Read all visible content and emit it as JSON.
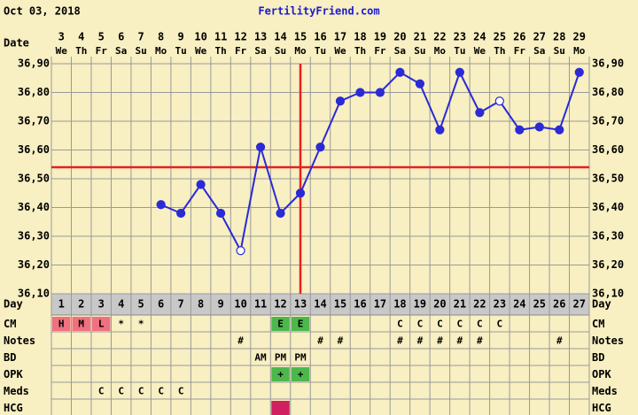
{
  "chart_data": {
    "type": "line",
    "header_date": "Oct 03, 2018",
    "site": "FertilityFriend.com",
    "date_label": "Date",
    "categories": [
      "3",
      "4",
      "5",
      "6",
      "7",
      "8",
      "9",
      "10",
      "11",
      "12",
      "13",
      "14",
      "15",
      "16",
      "17",
      "18",
      "19",
      "20",
      "21",
      "22",
      "23",
      "24",
      "25",
      "26",
      "27",
      "28",
      "29"
    ],
    "weekdays": [
      "We",
      "Th",
      "Fr",
      "Sa",
      "Su",
      "Mo",
      "Tu",
      "We",
      "Th",
      "Fr",
      "Sa",
      "Su",
      "Mo",
      "Tu",
      "We",
      "Th",
      "Fr",
      "Sa",
      "Su",
      "Mo",
      "Tu",
      "We",
      "Th",
      "Fr",
      "Sa",
      "Su",
      "Mo"
    ],
    "ylim": [
      36.1,
      36.9
    ],
    "yticks": [
      {
        "value": 36.1,
        "label": "36,10"
      },
      {
        "value": 36.2,
        "label": "36,20"
      },
      {
        "value": 36.3,
        "label": "36,30"
      },
      {
        "value": 36.4,
        "label": "36,40"
      },
      {
        "value": 36.5,
        "label": "36,50"
      },
      {
        "value": 36.6,
        "label": "36,60"
      },
      {
        "value": 36.7,
        "label": "36,70"
      },
      {
        "value": 36.8,
        "label": "36,80"
      },
      {
        "value": 36.9,
        "label": "36,90"
      }
    ],
    "grid": true,
    "series": [
      {
        "color": "#2a2ad6",
        "values": [
          null,
          null,
          null,
          null,
          null,
          36.41,
          36.38,
          36.48,
          36.38,
          36.25,
          36.61,
          36.38,
          36.45,
          36.61,
          36.77,
          36.8,
          36.8,
          36.87,
          36.83,
          36.67,
          36.87,
          36.73,
          36.77,
          36.67,
          36.68,
          36.67,
          36.87
        ],
        "hollow": [
          false,
          false,
          false,
          false,
          false,
          false,
          false,
          false,
          false,
          true,
          false,
          false,
          false,
          false,
          false,
          false,
          false,
          false,
          false,
          false,
          false,
          false,
          true,
          false,
          false,
          false,
          false
        ]
      }
    ],
    "coverline": 36.54,
    "coverline_color": "#e82020",
    "ovulation_day": 13,
    "ovulation_color": "#e82020",
    "day_label": "Day",
    "days": [
      1,
      2,
      3,
      4,
      5,
      6,
      7,
      8,
      9,
      10,
      11,
      12,
      13,
      14,
      15,
      16,
      17,
      18,
      19,
      20,
      21,
      22,
      23,
      24,
      25,
      26,
      27
    ],
    "rows": [
      {
        "label": "CM",
        "cells": [
          "H",
          "M",
          "L",
          "*",
          "*",
          null,
          null,
          null,
          null,
          null,
          null,
          "E",
          "E",
          null,
          null,
          null,
          null,
          "C",
          "C",
          "C",
          "C",
          "C",
          "C",
          null,
          null,
          null,
          null
        ],
        "colors": [
          "#f07080",
          "#f07080",
          "#f07080",
          null,
          null,
          null,
          null,
          null,
          null,
          null,
          null,
          "#4cb84c",
          "#4cb84c",
          null,
          null,
          null,
          null,
          null,
          null,
          null,
          null,
          null,
          null,
          null,
          null,
          null,
          null
        ]
      },
      {
        "label": "Notes",
        "cells": [
          null,
          null,
          null,
          null,
          null,
          null,
          null,
          null,
          null,
          "#",
          null,
          null,
          null,
          "#",
          "#",
          null,
          null,
          "#",
          "#",
          "#",
          "#",
          "#",
          null,
          null,
          null,
          "#",
          null
        ]
      },
      {
        "label": "BD",
        "cells": [
          null,
          null,
          null,
          null,
          null,
          null,
          null,
          null,
          null,
          null,
          "AM",
          "PM",
          "PM",
          null,
          null,
          null,
          null,
          null,
          null,
          null,
          null,
          null,
          null,
          null,
          null,
          null,
          null
        ]
      },
      {
        "label": "OPK",
        "cells": [
          null,
          null,
          null,
          null,
          null,
          null,
          null,
          null,
          null,
          null,
          null,
          "+",
          "+",
          null,
          null,
          null,
          null,
          null,
          null,
          null,
          null,
          null,
          null,
          null,
          null,
          null,
          null
        ],
        "colors": [
          null,
          null,
          null,
          null,
          null,
          null,
          null,
          null,
          null,
          null,
          null,
          "#4cb84c",
          "#4cb84c",
          null,
          null,
          null,
          null,
          null,
          null,
          null,
          null,
          null,
          null,
          null,
          null,
          null,
          null
        ]
      },
      {
        "label": "Meds",
        "cells": [
          null,
          null,
          "C",
          "C",
          "C",
          "C",
          "C",
          null,
          null,
          null,
          null,
          null,
          null,
          null,
          null,
          null,
          null,
          null,
          null,
          null,
          null,
          null,
          null,
          null,
          null,
          null,
          null
        ]
      },
      {
        "label": "HCG",
        "cells": [
          null,
          null,
          null,
          null,
          null,
          null,
          null,
          null,
          null,
          null,
          null,
          null,
          null,
          null,
          null,
          null,
          null,
          null,
          null,
          null,
          null,
          null,
          null,
          null,
          null,
          null,
          null
        ],
        "colors": [
          null,
          null,
          null,
          null,
          null,
          null,
          null,
          null,
          null,
          null,
          null,
          "#d02060",
          null,
          null,
          null,
          null,
          null,
          null,
          null,
          null,
          null,
          null,
          null,
          null,
          null,
          null,
          null
        ]
      }
    ]
  }
}
